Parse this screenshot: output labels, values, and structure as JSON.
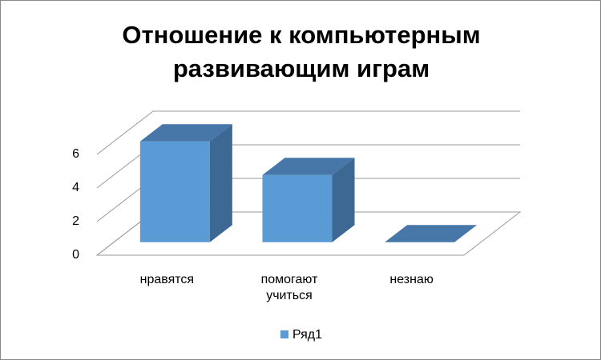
{
  "chart_data": {
    "type": "bar3d",
    "title": "Отношение к компьютерным развивающим играм",
    "categories": [
      "нравятся",
      "помогают учиться",
      "незнаю"
    ],
    "series": [
      {
        "name": "Ряд1",
        "color": "#5b9bd5",
        "values": [
          6,
          4,
          0
        ]
      }
    ],
    "ylim": [
      0,
      6
    ],
    "yticks": [
      0,
      2,
      4,
      6
    ],
    "grid": true,
    "legend": "bottom"
  }
}
